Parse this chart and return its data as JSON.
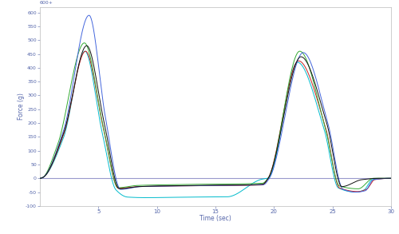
{
  "xlabel": "Time (sec)",
  "ylabel": "Force (g)",
  "xlim": [
    0,
    30
  ],
  "ylim": [
    -100,
    620
  ],
  "ytick_vals": [
    -100,
    -50,
    0,
    50,
    100,
    150,
    200,
    250,
    300,
    350,
    400,
    450,
    500,
    550,
    600
  ],
  "xtick_vals": [
    5,
    10,
    15,
    20,
    25,
    30
  ],
  "colors": {
    "black": "#111111",
    "blue": "#4466dd",
    "green": "#33aa33",
    "red": "#cc2222",
    "cyan": "#00bbcc"
  },
  "zero_line_color": "#9999cc",
  "background": "#ffffff",
  "top_label": "600+",
  "lw": 0.7
}
